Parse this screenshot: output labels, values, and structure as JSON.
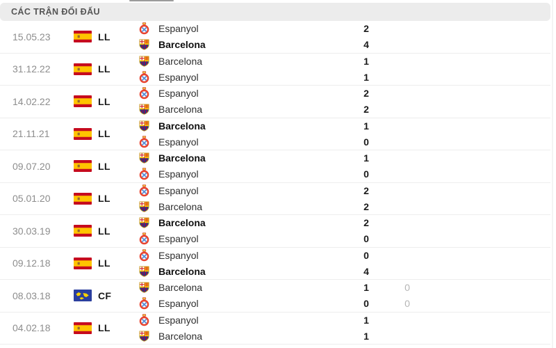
{
  "header": {
    "title": "CÁC TRẬN ĐỐI ĐẤU"
  },
  "colors": {
    "header_bg": "#ececec",
    "header_text": "#555555",
    "date_text": "#8d8d8d",
    "team_text": "#2e2e2e",
    "winner_text": "#0f0f0f",
    "score_text": "#1a1a1a",
    "alt_score_text": "#b5b5b5",
    "divider": "#ededed",
    "spain_flag_red": "#c60b1e",
    "spain_flag_yellow": "#ffc400",
    "world_flag_blue": "#2b3f9e",
    "world_flag_yellow": "#ffd200",
    "espanyol_red": "#e8432f",
    "espanyol_blue": "#5a8fd8",
    "barca_blue": "#004d98",
    "barca_garnet": "#a50044",
    "barca_gold": "#ffd24d"
  },
  "matches": [
    {
      "date": "15.05.23",
      "competition": "LL",
      "flag_icon": "spain-flag-icon",
      "lines": [
        {
          "team": "Espanyol",
          "crest_icon": "espanyol-crest-icon",
          "score": "2",
          "bold": false,
          "alt_score": ""
        },
        {
          "team": "Barcelona",
          "crest_icon": "barcelona-crest-icon",
          "score": "4",
          "bold": true,
          "alt_score": ""
        }
      ]
    },
    {
      "date": "31.12.22",
      "competition": "LL",
      "flag_icon": "spain-flag-icon",
      "lines": [
        {
          "team": "Barcelona",
          "crest_icon": "barcelona-crest-icon",
          "score": "1",
          "bold": false,
          "alt_score": ""
        },
        {
          "team": "Espanyol",
          "crest_icon": "espanyol-crest-icon",
          "score": "1",
          "bold": false,
          "alt_score": ""
        }
      ]
    },
    {
      "date": "14.02.22",
      "competition": "LL",
      "flag_icon": "spain-flag-icon",
      "lines": [
        {
          "team": "Espanyol",
          "crest_icon": "espanyol-crest-icon",
          "score": "2",
          "bold": false,
          "alt_score": ""
        },
        {
          "team": "Barcelona",
          "crest_icon": "barcelona-crest-icon",
          "score": "2",
          "bold": false,
          "alt_score": ""
        }
      ]
    },
    {
      "date": "21.11.21",
      "competition": "LL",
      "flag_icon": "spain-flag-icon",
      "lines": [
        {
          "team": "Barcelona",
          "crest_icon": "barcelona-crest-icon",
          "score": "1",
          "bold": true,
          "alt_score": ""
        },
        {
          "team": "Espanyol",
          "crest_icon": "espanyol-crest-icon",
          "score": "0",
          "bold": false,
          "alt_score": ""
        }
      ]
    },
    {
      "date": "09.07.20",
      "competition": "LL",
      "flag_icon": "spain-flag-icon",
      "lines": [
        {
          "team": "Barcelona",
          "crest_icon": "barcelona-crest-icon",
          "score": "1",
          "bold": true,
          "alt_score": ""
        },
        {
          "team": "Espanyol",
          "crest_icon": "espanyol-crest-icon",
          "score": "0",
          "bold": false,
          "alt_score": ""
        }
      ]
    },
    {
      "date": "05.01.20",
      "competition": "LL",
      "flag_icon": "spain-flag-icon",
      "lines": [
        {
          "team": "Espanyol",
          "crest_icon": "espanyol-crest-icon",
          "score": "2",
          "bold": false,
          "alt_score": ""
        },
        {
          "team": "Barcelona",
          "crest_icon": "barcelona-crest-icon",
          "score": "2",
          "bold": false,
          "alt_score": ""
        }
      ]
    },
    {
      "date": "30.03.19",
      "competition": "LL",
      "flag_icon": "spain-flag-icon",
      "lines": [
        {
          "team": "Barcelona",
          "crest_icon": "barcelona-crest-icon",
          "score": "2",
          "bold": true,
          "alt_score": ""
        },
        {
          "team": "Espanyol",
          "crest_icon": "espanyol-crest-icon",
          "score": "0",
          "bold": false,
          "alt_score": ""
        }
      ]
    },
    {
      "date": "09.12.18",
      "competition": "LL",
      "flag_icon": "spain-flag-icon",
      "lines": [
        {
          "team": "Espanyol",
          "crest_icon": "espanyol-crest-icon",
          "score": "0",
          "bold": false,
          "alt_score": ""
        },
        {
          "team": "Barcelona",
          "crest_icon": "barcelona-crest-icon",
          "score": "4",
          "bold": true,
          "alt_score": ""
        }
      ]
    },
    {
      "date": "08.03.18",
      "competition": "CF",
      "flag_icon": "world-flag-icon",
      "lines": [
        {
          "team": "Barcelona",
          "crest_icon": "barcelona-crest-icon",
          "score": "1",
          "bold": false,
          "alt_score": "0"
        },
        {
          "team": "Espanyol",
          "crest_icon": "espanyol-crest-icon",
          "score": "0",
          "bold": false,
          "alt_score": "0"
        }
      ]
    },
    {
      "date": "04.02.18",
      "competition": "LL",
      "flag_icon": "spain-flag-icon",
      "lines": [
        {
          "team": "Espanyol",
          "crest_icon": "espanyol-crest-icon",
          "score": "1",
          "bold": false,
          "alt_score": ""
        },
        {
          "team": "Barcelona",
          "crest_icon": "barcelona-crest-icon",
          "score": "1",
          "bold": false,
          "alt_score": ""
        }
      ]
    }
  ]
}
